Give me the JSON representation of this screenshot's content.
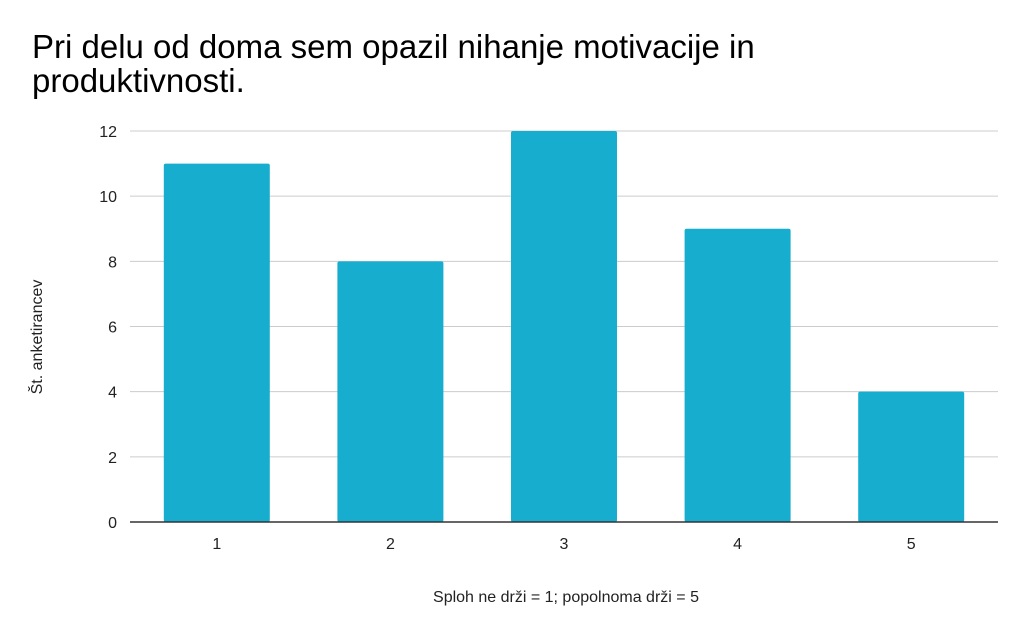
{
  "chart_data": {
    "type": "bar",
    "title": "Pri delu od doma sem opazil nihanje motivacije in produktivnosti.",
    "xlabel": "Sploh ne drži = 1; popolnoma drži = 5",
    "ylabel": "Št. anketirancev",
    "categories": [
      "1",
      "2",
      "3",
      "4",
      "5"
    ],
    "values": [
      11,
      8,
      12,
      9,
      4
    ],
    "ylim": [
      0,
      12
    ],
    "yticks": [
      "0",
      "2",
      "4",
      "6",
      "8",
      "10",
      "12"
    ],
    "grid": true,
    "colors": {
      "bar": "#17adce",
      "grid": "#cccccc",
      "axis": "#333333",
      "text": "#222222"
    }
  }
}
